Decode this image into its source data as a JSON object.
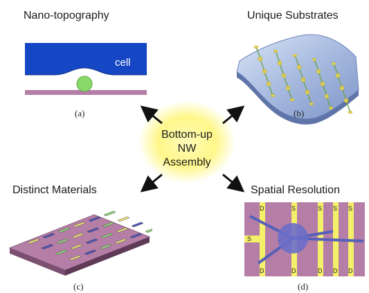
{
  "titles": {
    "top_left": "Nano-topography",
    "top_right": "Unique Substrates",
    "bottom_left": "Distinct Materials",
    "bottom_right": "Spatial Resolution"
  },
  "center": {
    "line1": "Bottom-up",
    "line2": "NW",
    "line3": "Assembly"
  },
  "captions": {
    "a": "(a)",
    "b": "(b)",
    "c": "(c)",
    "d": "(d)"
  },
  "panel_a": {
    "cell_label": "cell"
  },
  "panel_d": {
    "source_labels": [
      "D",
      "S",
      "S",
      "S",
      "S"
    ],
    "side_label": "S",
    "drain_labels": [
      "D",
      "D",
      "D",
      "D",
      "D"
    ]
  },
  "colors": {
    "cell_blue": "#1546c4",
    "nanowire_green": "#88d86a",
    "substrate_pink": "#b57ea6",
    "electrode_yellow": "#f5f06a",
    "center_glow": "#fff78a",
    "arrow": "#111111"
  }
}
